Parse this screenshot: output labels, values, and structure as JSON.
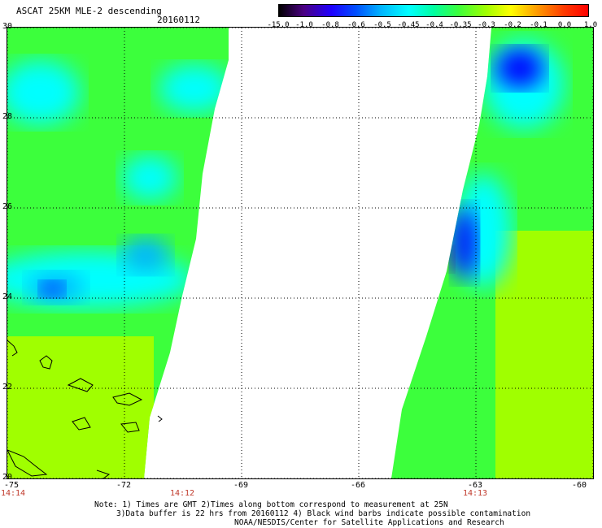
{
  "header": {
    "title": "ASCAT 25KM MLE-2 descending",
    "date": "20160112"
  },
  "colorbar": {
    "labels": [
      "-15.0",
      "-1.0",
      "-0.8",
      "-0.6",
      "-0.5",
      "-0.45",
      "-0.4",
      "-0.35",
      "-0.3",
      "-0.2",
      "-0.1",
      "0.0",
      "1.0"
    ],
    "colors": [
      "#000000",
      "#4b0082",
      "#1e00ff",
      "#0050ff",
      "#00b4ff",
      "#00ffff",
      "#00ffa0",
      "#3cff3c",
      "#a0ff00",
      "#ffff00",
      "#ffa000",
      "#ff3c00",
      "#ff0000"
    ]
  },
  "map": {
    "lat_labels": [
      "30",
      "28",
      "26",
      "24",
      "22",
      "20"
    ],
    "lon_labels": [
      "-75",
      "-72",
      "-69",
      "-66",
      "-63",
      "-60"
    ],
    "lat_range": [
      20,
      30
    ],
    "lon_range": [
      -75,
      -60
    ],
    "time_labels": [
      {
        "text": "14:14",
        "lon": -75
      },
      {
        "text": "14:12",
        "lon": -70.5
      },
      {
        "text": "14:13",
        "lon": -63
      }
    ],
    "palette": {
      "green": "#3cff3c",
      "yellowgreen": "#a0ff00",
      "cyan": "#00ffff",
      "aqua": "#00ffa0",
      "skyblue": "#00b4ff",
      "blue": "#0000ff",
      "darkblue": "#000096",
      "purple": "#4b0082"
    }
  },
  "notes": {
    "line1": "Note: 1) Times are GMT 2)Times along bottom correspond to measurement at 25N",
    "line2": "3)Data buffer is 22 hrs from 20160112 4) Black wind barbs indicate possible contamination",
    "line3": "NOAA/NESDIS/Center for Satellite Applications and Research"
  }
}
